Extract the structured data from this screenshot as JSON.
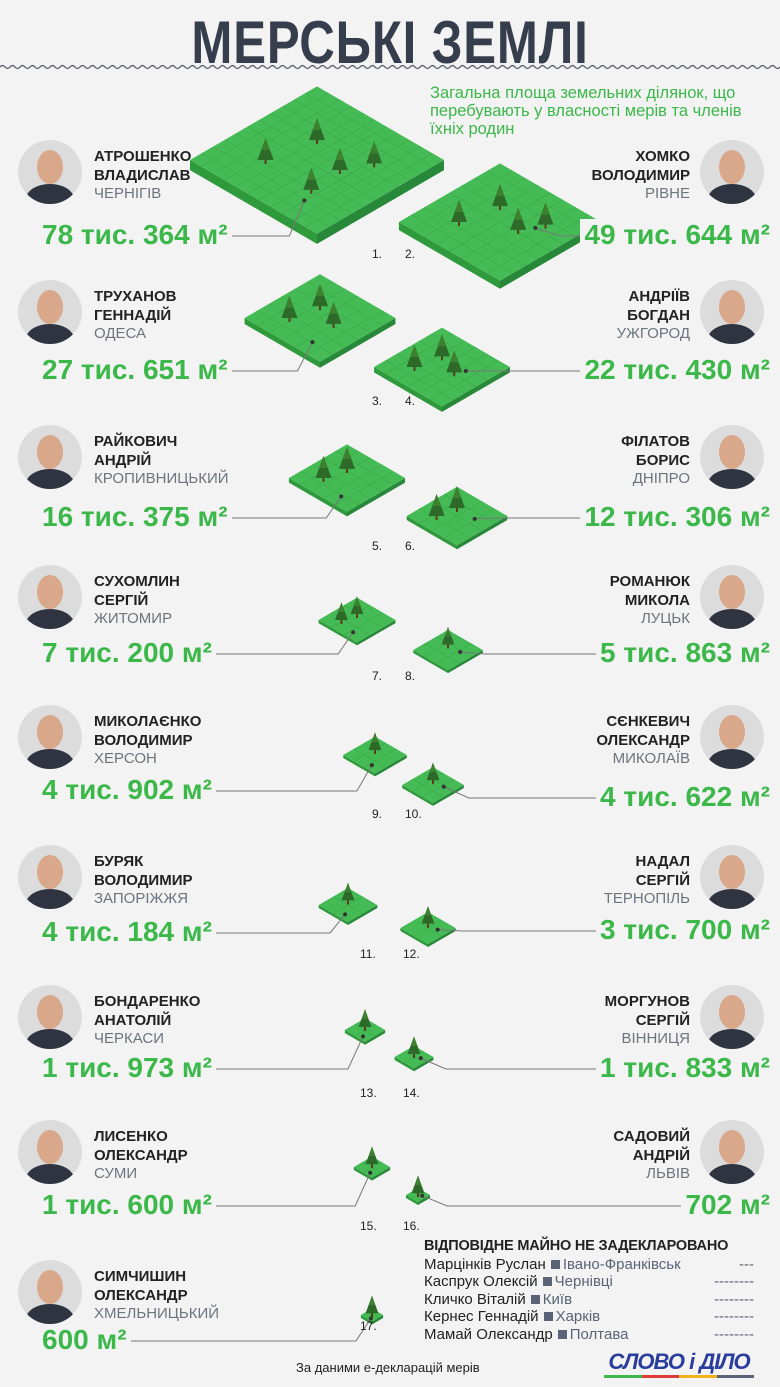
{
  "title": "МЕРСЬКІ ЗЕМЛІ",
  "subtitle": "Загальна площа земельних ділянок, що перебувають у власності мерів та членів їхніх родин",
  "colors": {
    "green": "#3cb84a",
    "green_dark": "#2f9a3c",
    "tree": "#2d6a2a",
    "text": "#363d4d"
  },
  "mayors": [
    {
      "num": "1.",
      "surname": "АТРОШЕНКО",
      "name": "ВЛАДИСЛАВ",
      "city": "ЧЕРНІГІВ",
      "area_label": "78 тис. 364 м²",
      "area": 78364
    },
    {
      "num": "2.",
      "surname": "ХОМКО",
      "name": "ВОЛОДИМИР",
      "city": "РІВНЕ",
      "area_label": "49 тис. 644 м²",
      "area": 49644
    },
    {
      "num": "3.",
      "surname": "ТРУХАНОВ",
      "name": "ГЕННАДІЙ",
      "city": "ОДЕСА",
      "area_label": "27 тис. 651 м²",
      "area": 27651
    },
    {
      "num": "4.",
      "surname": "АНДРІЇВ",
      "name": "БОГДАН",
      "city": "УЖГОРОД",
      "area_label": "22 тис. 430 м²",
      "area": 22430
    },
    {
      "num": "5.",
      "surname": "РАЙКОВИЧ",
      "name": "АНДРІЙ",
      "city": "КРОПИВНИЦЬКИЙ",
      "area_label": "16 тис. 375 м²",
      "area": 16375
    },
    {
      "num": "6.",
      "surname": "ФІЛАТОВ",
      "name": "БОРИС",
      "city": "ДНІПРО",
      "area_label": "12 тис. 306 м²",
      "area": 12306
    },
    {
      "num": "7.",
      "surname": "СУХОМЛИН",
      "name": "СЕРГІЙ",
      "city": "ЖИТОМИР",
      "area_label": "7 тис. 200 м²",
      "area": 7200
    },
    {
      "num": "8.",
      "surname": "РОМАНЮК",
      "name": "МИКОЛА",
      "city": "ЛУЦЬК",
      "area_label": "5 тис. 863 м²",
      "area": 5863
    },
    {
      "num": "9.",
      "surname": "МИКОЛАЄНКО",
      "name": "ВОЛОДИМИР",
      "city": "ХЕРСОН",
      "area_label": "4 тис. 902 м²",
      "area": 4902
    },
    {
      "num": "10.",
      "surname": "СЄНКЕВИЧ",
      "name": "ОЛЕКСАНДР",
      "city": "МИКОЛАЇВ",
      "area_label": "4 тис. 622 м²",
      "area": 4622
    },
    {
      "num": "11.",
      "surname": "БУРЯК",
      "name": "ВОЛОДИМИР",
      "city": "ЗАПОРІЖЖЯ",
      "area_label": "4 тис. 184 м²",
      "area": 4184
    },
    {
      "num": "12.",
      "surname": "НАДАЛ",
      "name": "СЕРГІЙ",
      "city": "ТЕРНОПІЛЬ",
      "area_label": "3 тис. 700 м²",
      "area": 3700
    },
    {
      "num": "13.",
      "surname": "БОНДАРЕНКО",
      "name": "АНАТОЛІЙ",
      "city": "ЧЕРКАСИ",
      "area_label": "1 тис. 973 м²",
      "area": 1973
    },
    {
      "num": "14.",
      "surname": "МОРГУНОВ",
      "name": "СЕРГІЙ",
      "city": "ВІННИЦЯ",
      "area_label": "1 тис. 833 м²",
      "area": 1833
    },
    {
      "num": "15.",
      "surname": "ЛИСЕНКО",
      "name": "ОЛЕКСАНДР",
      "city": "СУМИ",
      "area_label": "1 тис. 600 м²",
      "area": 1600
    },
    {
      "num": "16.",
      "surname": "САДОВИЙ",
      "name": "АНДРІЙ",
      "city": "ЛЬВІВ",
      "area_label": "702 м²",
      "area": 702
    },
    {
      "num": "17.",
      "surname": "СИМЧИШИН",
      "name": "ОЛЕКСАНДР",
      "city": "ХМЕЛЬНИЦЬКИЙ",
      "area_label": "600 м²",
      "area": 600
    }
  ],
  "not_declared": {
    "heading": "ВІДПОВІДНЕ МАЙНО НЕ ЗАДЕКЛАРОВАНО",
    "rows": [
      {
        "name": "Марцінків Руслан",
        "city": "Івано-Франківськ",
        "dash": "---"
      },
      {
        "name": "Каспрук Олексій",
        "city": "Чернівці",
        "dash": "--------"
      },
      {
        "name": "Кличко Віталій",
        "city": "Київ",
        "dash": "--------"
      },
      {
        "name": "Кернес Геннадій",
        "city": "Харків",
        "dash": "--------"
      },
      {
        "name": "Мамай Олександр",
        "city": "Полтава",
        "dash": "--------"
      }
    ]
  },
  "source": "За даними е-декларацій мерів",
  "logo": "СЛОВО і ДІЛО",
  "chart_data": {
    "type": "pictorial",
    "title": "МЕРСЬКІ ЗЕМЛІ",
    "unit": "м²",
    "categories": [
      "Атрошенко",
      "Хомко",
      "Труханов",
      "Андріїв",
      "Райкович",
      "Філатов",
      "Сухомлин",
      "Романюк",
      "Миколаєнко",
      "Сєнкевич",
      "Буряк",
      "Надал",
      "Бондаренко",
      "Моргунов",
      "Лисенко",
      "Садовий",
      "Симчишин"
    ],
    "values": [
      78364,
      49644,
      27651,
      22430,
      16375,
      12306,
      7200,
      5863,
      4902,
      4622,
      4184,
      3700,
      1973,
      1833,
      1600,
      702,
      600
    ]
  }
}
